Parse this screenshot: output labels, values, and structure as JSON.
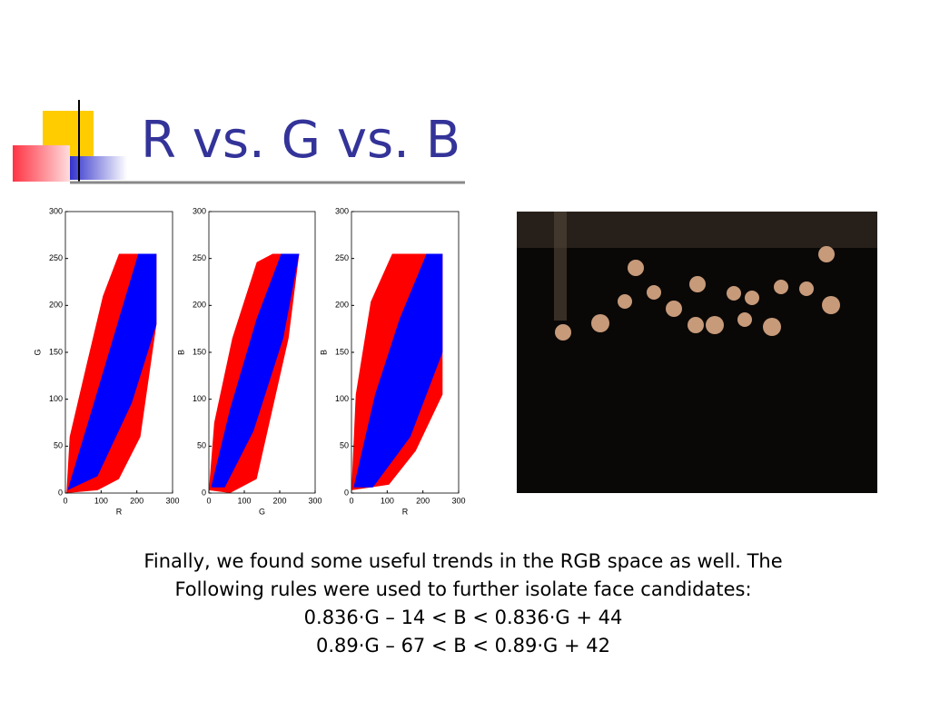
{
  "title": "R vs. G vs. B",
  "plots": [
    {
      "xlabel": "R",
      "ylabel": "G",
      "xlim": [
        0,
        300
      ],
      "ylim": [
        0,
        300
      ],
      "xticks": [
        0,
        100,
        200,
        300
      ],
      "yticks": [
        0,
        50,
        100,
        150,
        200,
        250,
        300
      ]
    },
    {
      "xlabel": "G",
      "ylabel": "B",
      "xlim": [
        0,
        300
      ],
      "ylim": [
        0,
        300
      ],
      "xticks": [
        0,
        100,
        200,
        300
      ],
      "yticks": [
        0,
        50,
        100,
        150,
        200,
        250,
        300
      ]
    },
    {
      "xlabel": "R",
      "ylabel": "B",
      "xlim": [
        0,
        300
      ],
      "ylim": [
        0,
        300
      ],
      "xticks": [
        0,
        100,
        200,
        300
      ],
      "yticks": [
        0,
        50,
        100,
        150,
        200,
        250,
        300
      ]
    }
  ],
  "body": [
    "Finally, we found some useful trends in the RGB space as well. The",
    "Following rules were used to further isolate face candidates:",
    "0.836·G – 14 < B < 0.836·G + 44",
    "0.89·G – 67 < B < 0.89·G + 42"
  ]
}
